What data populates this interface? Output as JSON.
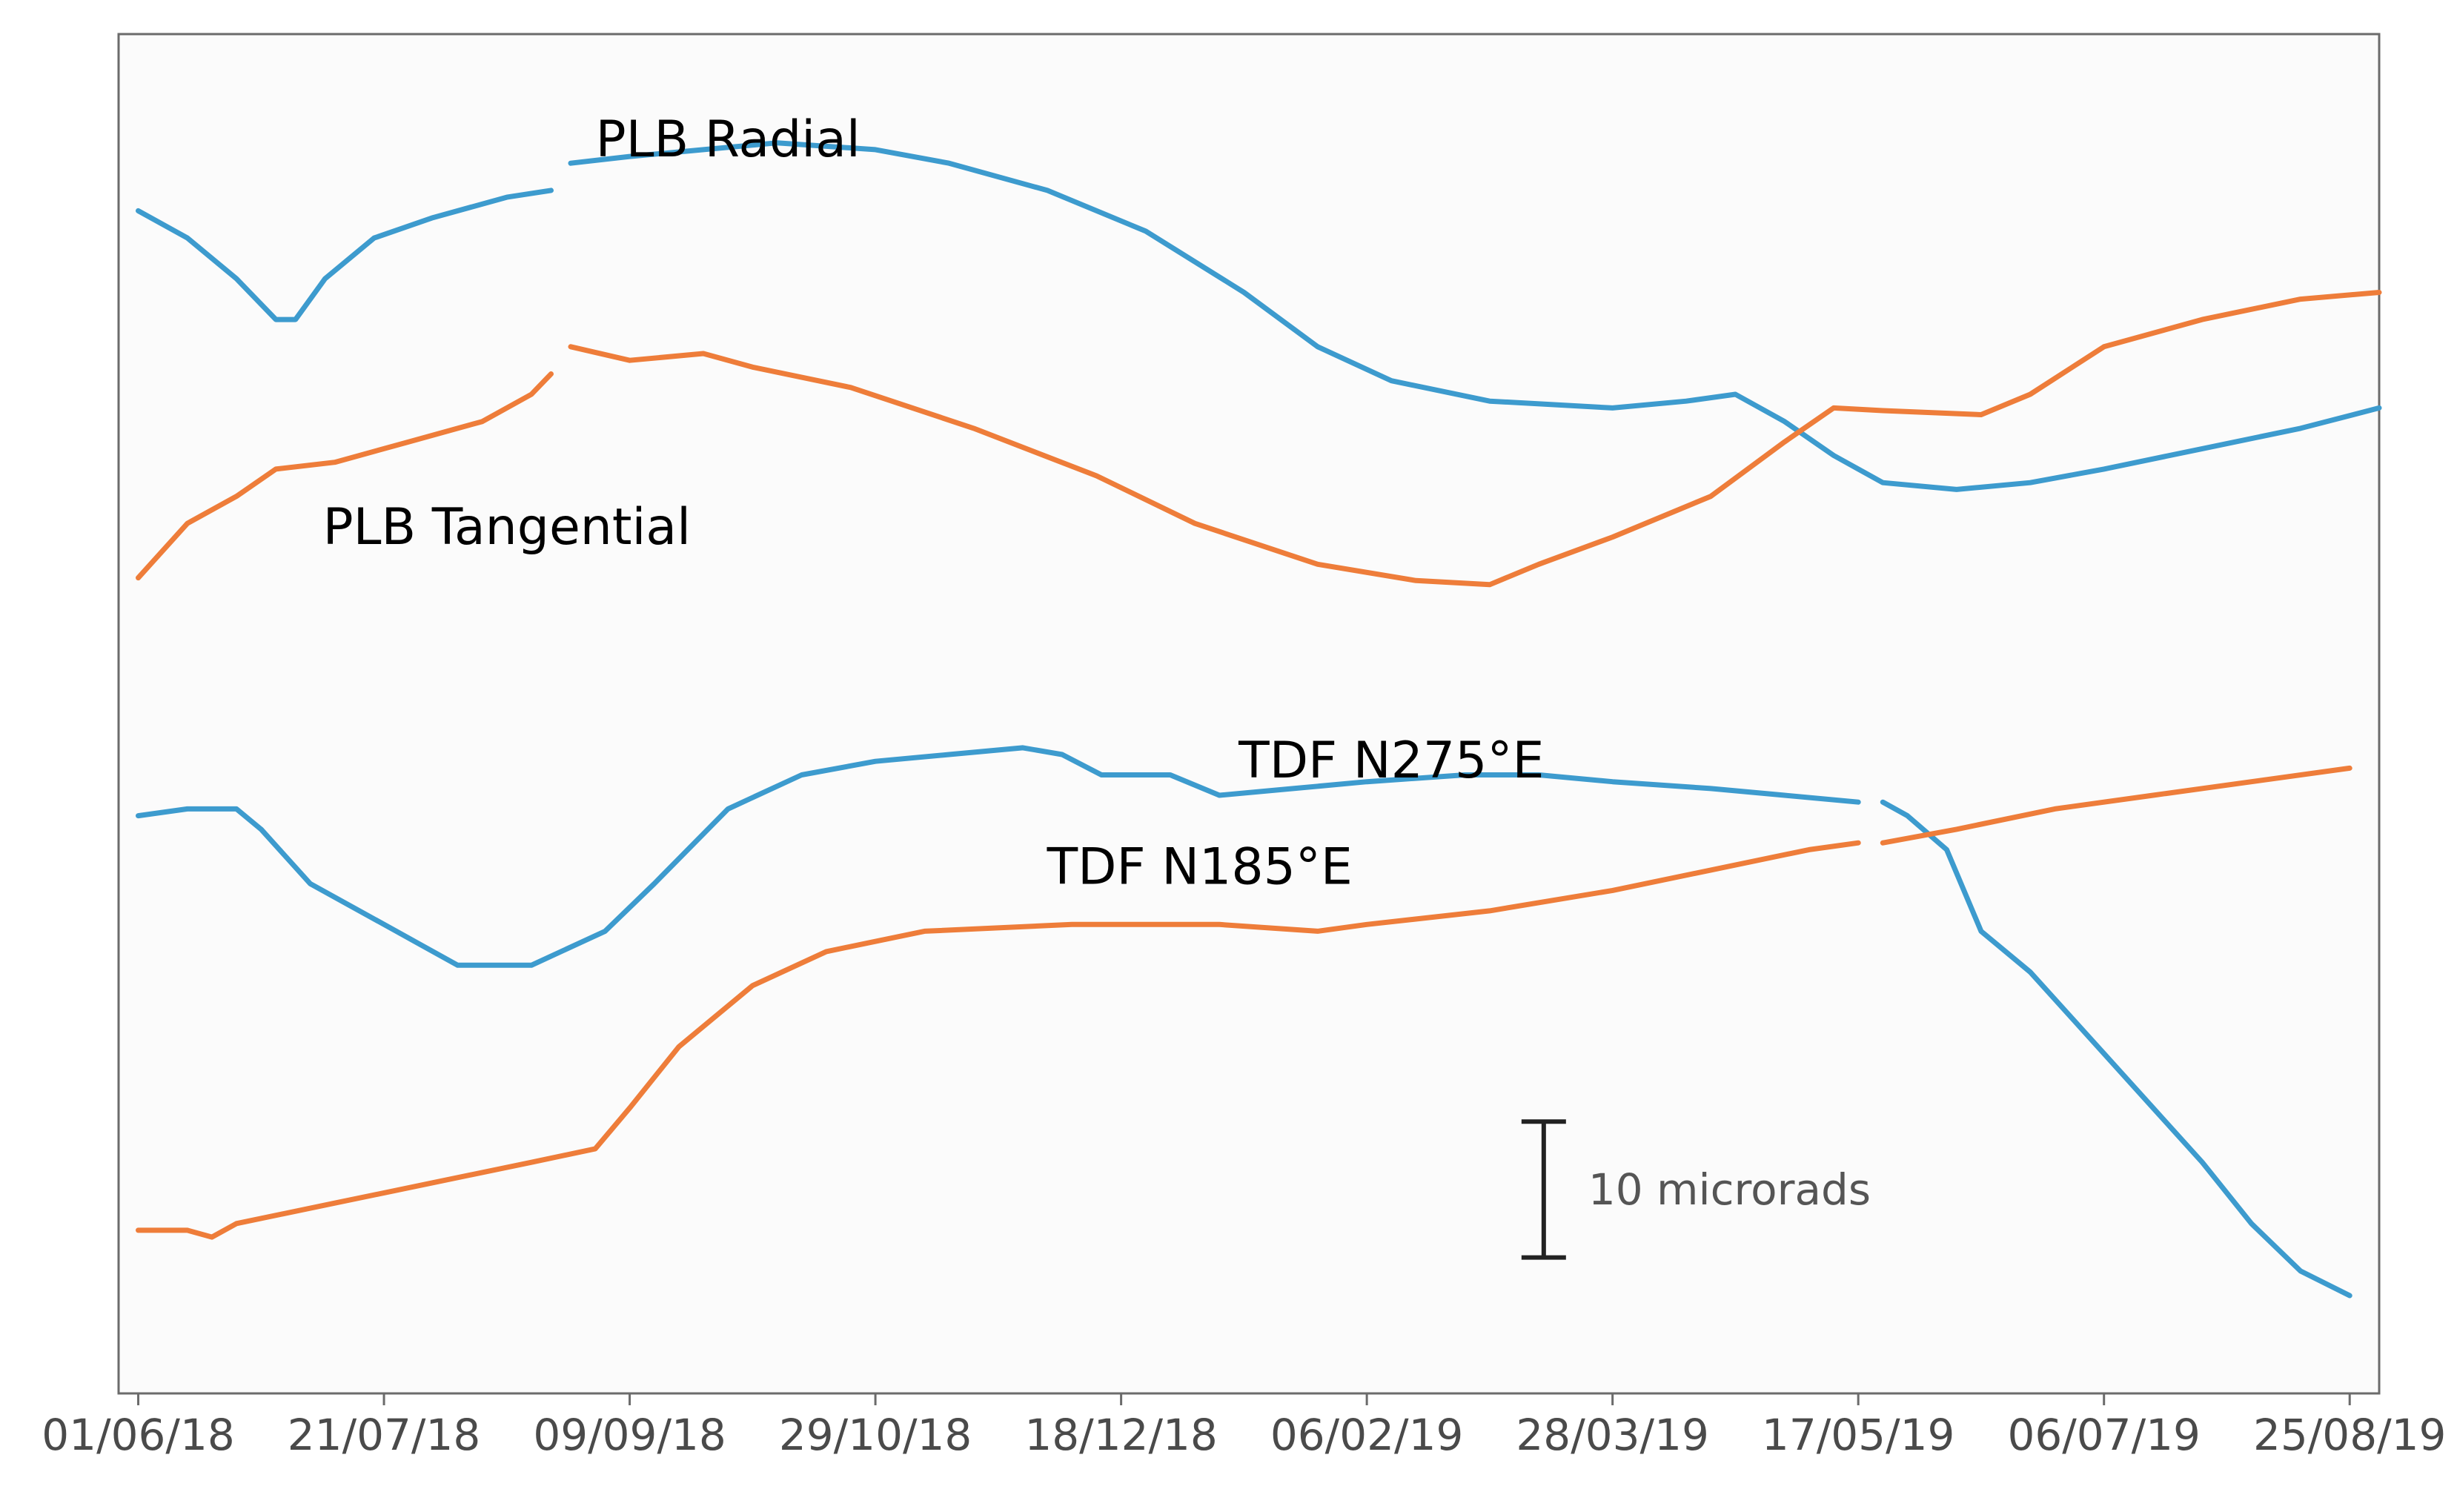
{
  "chart_data": {
    "type": "line",
    "title": "",
    "xlabel": "",
    "ylabel": "",
    "x_axis": {
      "type": "date",
      "ticks": [
        {
          "label": "01/06/18",
          "day": 0
        },
        {
          "label": "21/07/18",
          "day": 50
        },
        {
          "label": "09/09/18",
          "day": 100
        },
        {
          "label": "29/10/18",
          "day": 150
        },
        {
          "label": "18/12/18",
          "day": 200
        },
        {
          "label": "06/02/19",
          "day": 250
        },
        {
          "label": "28/03/19",
          "day": 300
        },
        {
          "label": "17/05/19",
          "day": 350
        },
        {
          "label": "06/07/19",
          "day": 400
        },
        {
          "label": "25/08/19",
          "day": 450
        }
      ],
      "xlim_days": [
        -4,
        456
      ]
    },
    "y_axis": {
      "units": "microrads",
      "ylim": [
        0,
        100
      ],
      "ticks_shown": false
    },
    "grid": false,
    "scale_bar": {
      "label": "10 microrads",
      "length": 10,
      "from": 10,
      "center_day": 286
    },
    "series": [
      {
        "name": "PLB Radial",
        "color": "#3d9bce",
        "label_day": 120,
        "label_y": 91,
        "segments": [
          [
            [
              0,
              87
            ],
            [
              10,
              85
            ],
            [
              20,
              82
            ],
            [
              28,
              79
            ],
            [
              32,
              79
            ],
            [
              38,
              82
            ],
            [
              48,
              85
            ],
            [
              60,
              86.5
            ],
            [
              75,
              88
            ],
            [
              84,
              88.5
            ]
          ],
          [
            [
              88,
              90.5
            ],
            [
              100,
              91
            ],
            [
              115,
              91.5
            ],
            [
              130,
              92
            ],
            [
              150,
              91.5
            ],
            [
              165,
              90.5
            ],
            [
              185,
              88.5
            ],
            [
              205,
              85.5
            ],
            [
              225,
              81
            ],
            [
              240,
              77
            ],
            [
              255,
              74.5
            ],
            [
              275,
              73
            ],
            [
              300,
              72.5
            ],
            [
              315,
              73
            ],
            [
              325,
              73.5
            ],
            [
              335,
              71.5
            ],
            [
              345,
              69
            ],
            [
              355,
              67
            ],
            [
              370,
              66.5
            ],
            [
              385,
              67
            ],
            [
              400,
              68
            ],
            [
              420,
              69.5
            ],
            [
              440,
              71
            ],
            [
              456,
              72.5
            ]
          ]
        ]
      },
      {
        "name": "PLB Tangential",
        "color": "#ee7d3a",
        "label_day": 75,
        "label_y": 62.5,
        "segments": [
          [
            [
              0,
              60
            ],
            [
              10,
              64
            ],
            [
              20,
              66
            ],
            [
              28,
              68
            ],
            [
              40,
              68.5
            ],
            [
              55,
              70
            ],
            [
              70,
              71.5
            ],
            [
              80,
              73.5
            ],
            [
              84,
              75
            ]
          ],
          [
            [
              88,
              77
            ],
            [
              100,
              76
            ],
            [
              115,
              76.5
            ],
            [
              125,
              75.5
            ],
            [
              145,
              74
            ],
            [
              170,
              71
            ],
            [
              195,
              67.5
            ],
            [
              215,
              64
            ],
            [
              240,
              61
            ],
            [
              260,
              59.8
            ],
            [
              275,
              59.5
            ],
            [
              285,
              61
            ],
            [
              300,
              63
            ],
            [
              320,
              66
            ],
            [
              335,
              70
            ],
            [
              345,
              72.5
            ],
            [
              355,
              72.3
            ],
            [
              375,
              72
            ],
            [
              385,
              73.5
            ],
            [
              400,
              77
            ],
            [
              420,
              79
            ],
            [
              440,
              80.5
            ],
            [
              456,
              81
            ]
          ]
        ]
      },
      {
        "name": "TDF N275°E",
        "color": "#3d9bce",
        "label_day": 255,
        "label_y": 45.3,
        "segments": [
          [
            [
              0,
              42.5
            ],
            [
              10,
              43
            ],
            [
              20,
              43
            ],
            [
              25,
              41.5
            ],
            [
              35,
              37.5
            ],
            [
              45,
              35.5
            ],
            [
              55,
              33.5
            ],
            [
              65,
              31.5
            ],
            [
              70,
              31.5
            ],
            [
              80,
              31.5
            ],
            [
              95,
              34
            ],
            [
              105,
              37.5
            ],
            [
              120,
              43
            ],
            [
              135,
              45.5
            ],
            [
              150,
              46.5
            ],
            [
              165,
              47
            ],
            [
              180,
              47.5
            ],
            [
              188,
              47
            ],
            [
              196,
              45.5
            ],
            [
              210,
              45.5
            ],
            [
              220,
              44
            ],
            [
              235,
              44.5
            ],
            [
              250,
              45
            ],
            [
              270,
              45.5
            ],
            [
              285,
              45.5
            ],
            [
              300,
              45
            ],
            [
              320,
              44.5
            ],
            [
              335,
              44
            ],
            [
              350,
              43.5
            ]
          ],
          [
            [
              355,
              43.5
            ],
            [
              360,
              42.5
            ],
            [
              368,
              40
            ],
            [
              375,
              34
            ],
            [
              385,
              31
            ],
            [
              400,
              25
            ],
            [
              410,
              21
            ],
            [
              420,
              17
            ],
            [
              430,
              12.5
            ],
            [
              440,
              9
            ],
            [
              450,
              7.2
            ]
          ]
        ]
      },
      {
        "name": "TDF N185°E",
        "color": "#ee7d3a",
        "label_day": 216,
        "label_y": 37.5,
        "segments": [
          [
            [
              0,
              12
            ],
            [
              10,
              12
            ],
            [
              15,
              11.5
            ],
            [
              20,
              12.5
            ],
            [
              40,
              14
            ],
            [
              60,
              15.5
            ],
            [
              80,
              17
            ],
            [
              93,
              18
            ],
            [
              100,
              21
            ],
            [
              110,
              25.5
            ],
            [
              125,
              30
            ],
            [
              140,
              32.5
            ],
            [
              160,
              34
            ],
            [
              190,
              34.5
            ],
            [
              220,
              34.5
            ],
            [
              240,
              34
            ],
            [
              250,
              34.5
            ],
            [
              275,
              35.5
            ],
            [
              300,
              37
            ],
            [
              320,
              38.5
            ],
            [
              340,
              40
            ],
            [
              350,
              40.5
            ]
          ],
          [
            [
              355,
              40.5
            ],
            [
              370,
              41.5
            ],
            [
              390,
              43
            ],
            [
              410,
              44
            ],
            [
              430,
              45
            ],
            [
              450,
              46
            ]
          ]
        ]
      }
    ]
  }
}
